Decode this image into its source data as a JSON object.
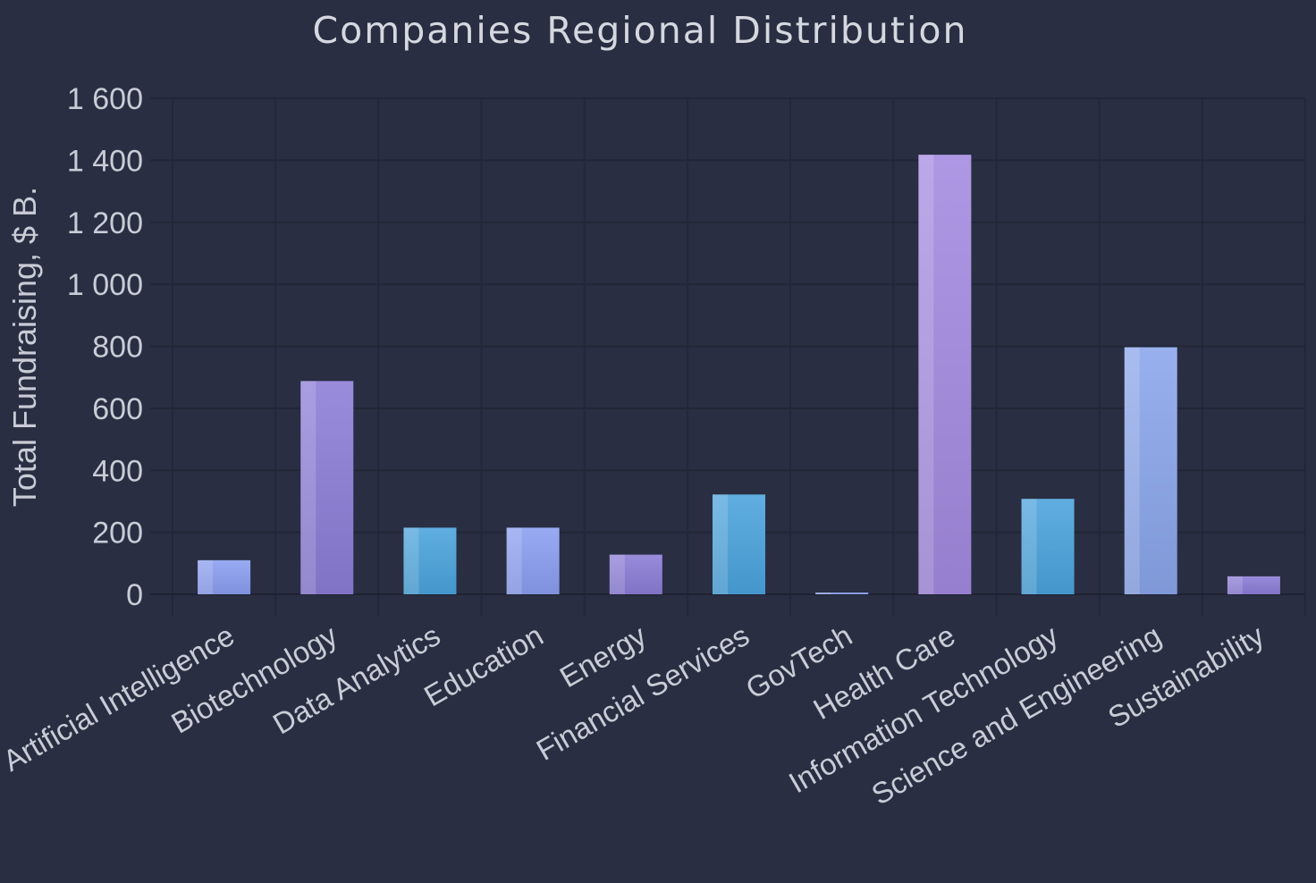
{
  "chart_data": {
    "type": "bar",
    "title": "Companies Regional Distribution",
    "xlabel": "",
    "ylabel": "Total Fundraising, $ B.",
    "ylim": [
      0,
      1600
    ],
    "yticks": [
      0,
      200,
      400,
      600,
      800,
      1000,
      1200,
      1400,
      1600
    ],
    "ytick_labels": [
      "0",
      "200",
      "400",
      "600",
      "800",
      "1 000",
      "1 200",
      "1 400",
      "1 600"
    ],
    "categories": [
      "Artificial Intelligence",
      "Biotechnology",
      "Data Analytics",
      "Education",
      "Energy",
      "Financial Services",
      "GovTech",
      "Health Care",
      "Information Technology",
      "Science and Engineering",
      "Sustainability"
    ],
    "values": [
      110,
      688,
      215,
      215,
      128,
      322,
      5,
      1418,
      308,
      797,
      58
    ],
    "bar_colors": [
      "#8a9ef0",
      "#8b7cd6",
      "#4aa3dd",
      "#8a9ef0",
      "#8b7cd6",
      "#4aa3dd",
      "#8a9ef0",
      "#a38ae0",
      "#4aa3dd",
      "#8aa5ea",
      "#8b7cd6"
    ],
    "grid": true,
    "legend": "none"
  }
}
